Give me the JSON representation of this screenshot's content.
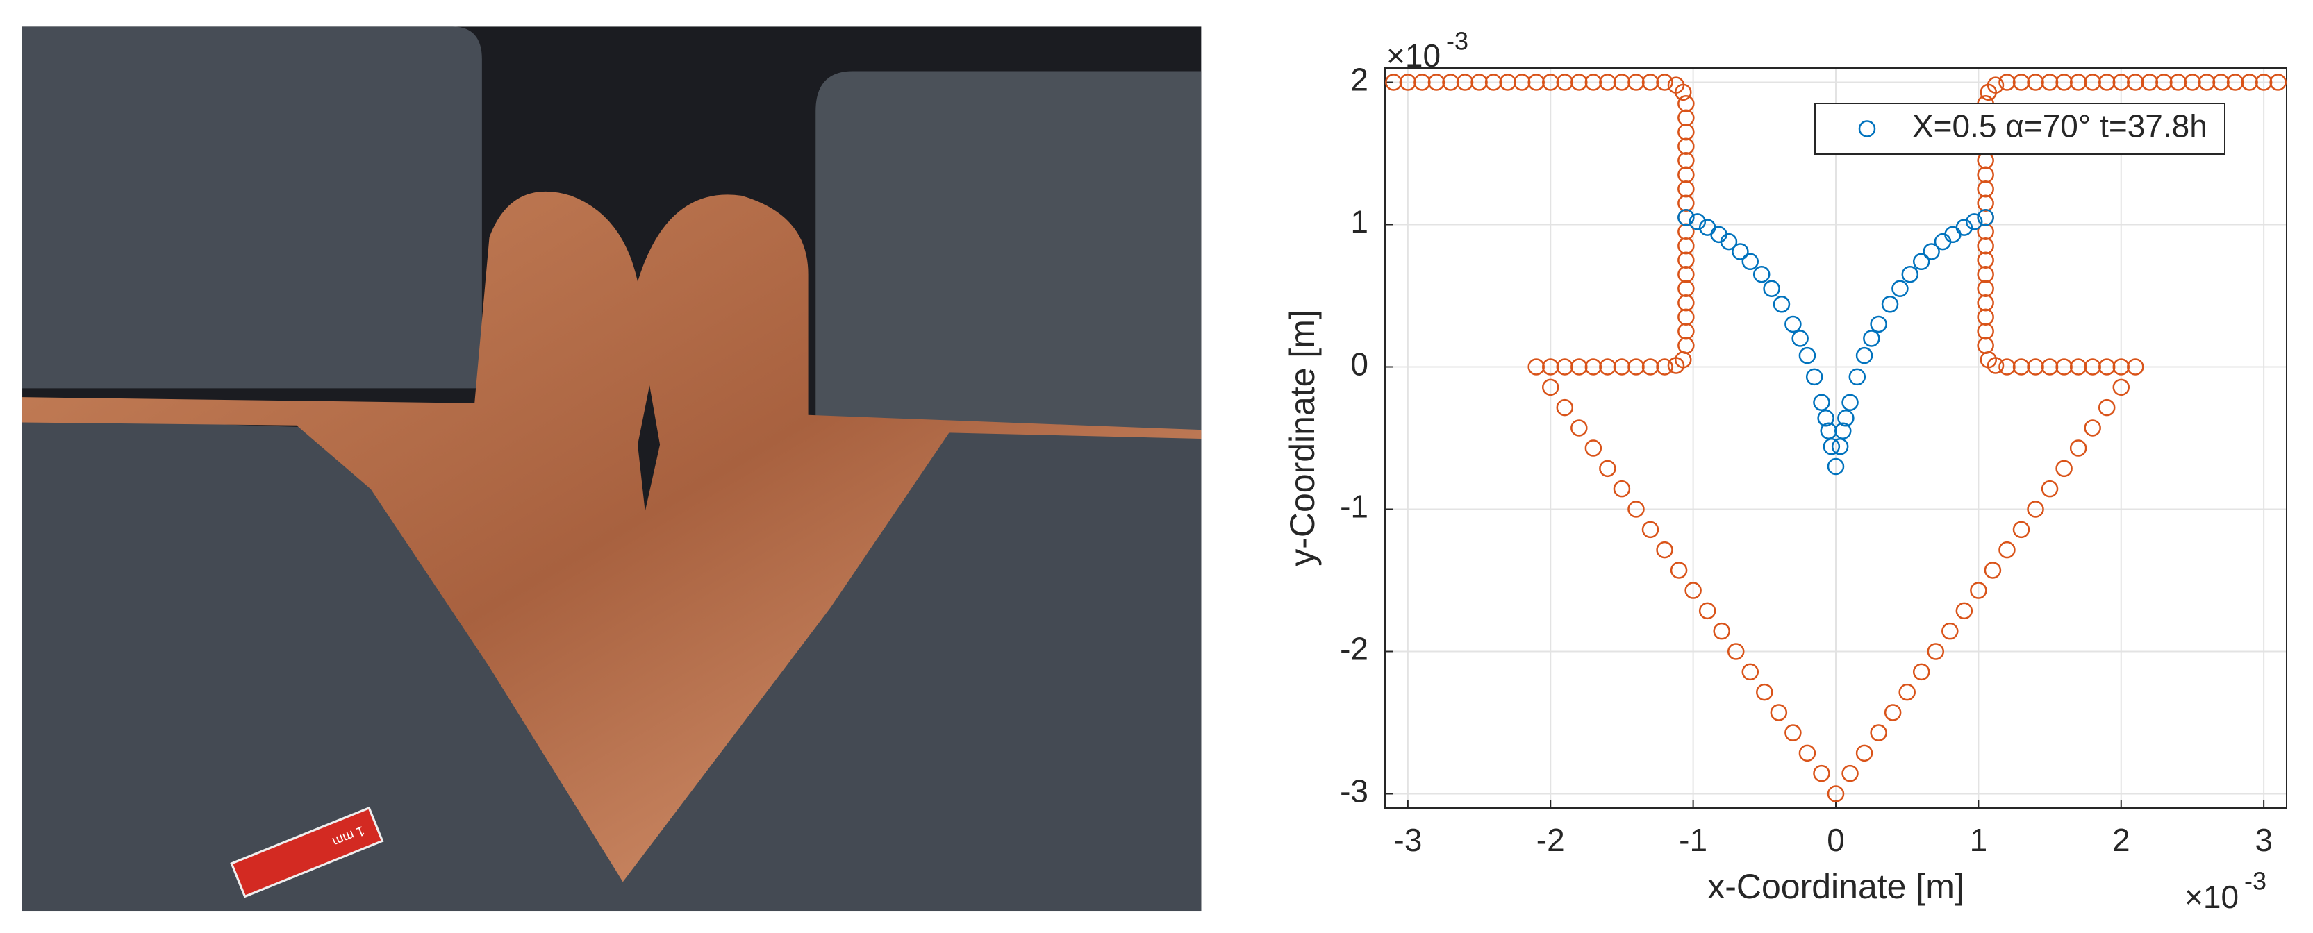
{
  "photo": {
    "scale_bar_label": "1 mm"
  },
  "chart_data": {
    "type": "scatter",
    "xlabel": "x-Coordinate [m]",
    "ylabel": "y-Coordinate [m]",
    "x_multiplier": "×10",
    "x_exponent": "-3",
    "y_multiplier": "×10",
    "y_exponent": "-3",
    "xlim": [
      -3.16,
      3.16
    ],
    "ylim": [
      -3.1,
      2.1
    ],
    "xticks": [
      -3,
      -2,
      -1,
      0,
      1,
      2,
      3
    ],
    "yticks": [
      -3,
      -2,
      -1,
      0,
      1,
      2
    ],
    "grid": true,
    "legend": "upper right",
    "series": [
      {
        "color": "#d95319",
        "x": [
          -3.1,
          -3.0,
          -2.9,
          -2.8,
          -2.7,
          -2.6,
          -2.5,
          -2.4,
          -2.3,
          -2.2,
          -2.1,
          -2.0,
          -1.9,
          -1.8,
          -1.7,
          -1.6,
          -1.5,
          -1.4,
          -1.3,
          -1.2,
          -1.12,
          -1.07,
          -1.05,
          -1.05,
          -1.05,
          -1.05,
          -1.05,
          -1.05,
          -1.05,
          -1.05,
          -1.05,
          -1.05,
          -1.05,
          -1.05,
          -1.05,
          -1.05,
          -1.05,
          -1.05,
          -1.05,
          -1.05,
          -1.07,
          -1.12,
          -1.2,
          -1.3,
          -1.4,
          -1.5,
          -1.6,
          -1.7,
          -1.8,
          -1.9,
          -2.0,
          -2.1,
          -2.0,
          -1.9,
          -1.8,
          -1.7,
          -1.6,
          -1.5,
          -1.4,
          -1.3,
          -1.2,
          -1.1,
          -1.0,
          -0.9,
          -0.8,
          -0.7,
          -0.6,
          -0.5,
          -0.4,
          -0.3,
          -0.2,
          -0.1,
          0,
          0.1,
          0.2,
          0.3,
          0.4,
          0.5,
          0.6,
          0.7,
          0.8,
          0.9,
          1.0,
          1.1,
          1.2,
          1.3,
          1.4,
          1.5,
          1.6,
          1.7,
          1.8,
          1.9,
          2.0,
          2.1,
          2.0,
          1.9,
          1.8,
          1.7,
          1.6,
          1.5,
          1.4,
          1.3,
          1.2,
          1.12,
          1.07,
          1.05,
          1.05,
          1.05,
          1.05,
          1.05,
          1.05,
          1.05,
          1.05,
          1.05,
          1.05,
          1.05,
          1.05,
          1.05,
          1.05,
          1.05,
          1.05,
          1.05,
          1.05,
          1.07,
          1.12,
          1.2,
          1.3,
          1.4,
          1.5,
          1.6,
          1.7,
          1.8,
          1.9,
          2.0,
          2.1,
          2.2,
          2.3,
          2.4,
          2.5,
          2.6,
          2.7,
          2.8,
          2.9,
          3.0,
          3.1
        ],
        "values": [
          2,
          2,
          2,
          2,
          2,
          2,
          2,
          2,
          2,
          2,
          2,
          2,
          2,
          2,
          2,
          2,
          2,
          2,
          2,
          2,
          1.98,
          1.93,
          1.85,
          1.75,
          1.65,
          1.55,
          1.45,
          1.35,
          1.25,
          1.15,
          1.05,
          0.95,
          0.85,
          0.75,
          0.65,
          0.55,
          0.45,
          0.35,
          0.25,
          0.15,
          0.05,
          0.01,
          0,
          0,
          0,
          0,
          0,
          0,
          0,
          0,
          0,
          0,
          -0.143,
          -0.286,
          -0.429,
          -0.571,
          -0.714,
          -0.857,
          -1.0,
          -1.143,
          -1.286,
          -1.429,
          -1.571,
          -1.714,
          -1.857,
          -2.0,
          -2.143,
          -2.286,
          -2.429,
          -2.571,
          -2.714,
          -2.857,
          -3,
          -2.857,
          -2.714,
          -2.571,
          -2.429,
          -2.286,
          -2.143,
          -2.0,
          -1.857,
          -1.714,
          -1.571,
          -1.429,
          -1.286,
          -1.143,
          -1.0,
          -0.857,
          -0.714,
          -0.571,
          -0.429,
          -0.286,
          -0.143,
          0,
          0,
          0,
          0,
          0,
          0,
          0,
          0,
          0,
          0,
          0.01,
          0.05,
          0.15,
          0.25,
          0.35,
          0.45,
          0.55,
          0.65,
          0.75,
          0.85,
          0.95,
          1.05,
          1.15,
          1.25,
          1.35,
          1.45,
          1.55,
          1.65,
          1.75,
          1.85,
          1.93,
          1.98,
          2,
          2,
          2,
          2,
          2,
          2,
          2,
          2,
          2,
          2,
          2,
          2,
          2,
          2,
          2,
          2,
          2,
          2,
          2,
          2
        ]
      },
      {
        "name": "X=0.5 α=70° t=37.8h",
        "color": "#0072bd",
        "x": [
          -1.05,
          -0.97,
          -0.9,
          -0.82,
          -0.75,
          -0.67,
          -0.6,
          -0.52,
          -0.45,
          -0.38,
          -0.3,
          -0.25,
          -0.2,
          -0.15,
          -0.1,
          -0.07,
          -0.05,
          -0.03,
          0,
          0.03,
          0.05,
          0.07,
          0.1,
          0.15,
          0.2,
          0.25,
          0.3,
          0.38,
          0.45,
          0.52,
          0.6,
          0.67,
          0.75,
          0.82,
          0.9,
          0.97,
          1.05
        ],
        "values": [
          1.05,
          1.02,
          0.98,
          0.93,
          0.88,
          0.81,
          0.74,
          0.65,
          0.55,
          0.44,
          0.3,
          0.2,
          0.08,
          -0.07,
          -0.25,
          -0.36,
          -0.45,
          -0.56,
          -0.7,
          -0.56,
          -0.45,
          -0.36,
          -0.25,
          -0.07,
          0.08,
          0.2,
          0.3,
          0.44,
          0.55,
          0.65,
          0.74,
          0.81,
          0.88,
          0.93,
          0.98,
          1.02,
          1.05
        ]
      }
    ]
  }
}
